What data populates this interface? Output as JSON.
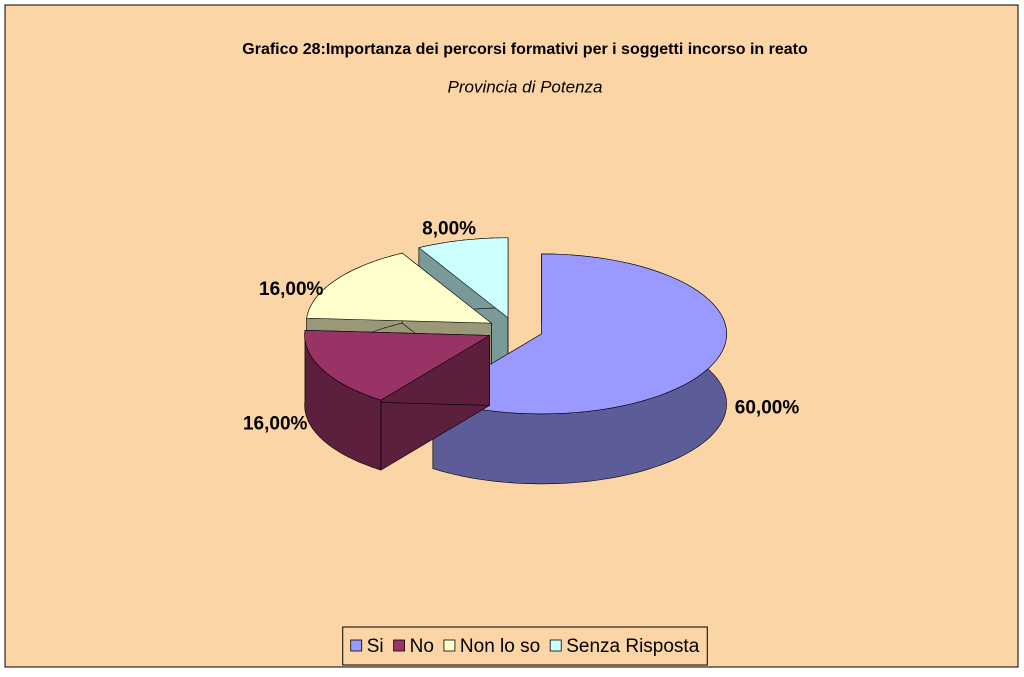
{
  "chart_data": {
    "type": "pie",
    "title": "Grafico 28:Importanza dei percorsi formativi per i soggetti incorso in reato",
    "subtitle": "Provincia di Potenza",
    "categories": [
      "Si",
      "No",
      "Non lo so",
      "Senza Risposta"
    ],
    "values": [
      60,
      16,
      16,
      8
    ],
    "value_labels": [
      "60,00%",
      "16,00%",
      "16,00%",
      "8,00%"
    ],
    "colors": [
      "#9999ff",
      "#993366",
      "#ffffcc",
      "#ccffff"
    ],
    "legend": "bottom"
  }
}
